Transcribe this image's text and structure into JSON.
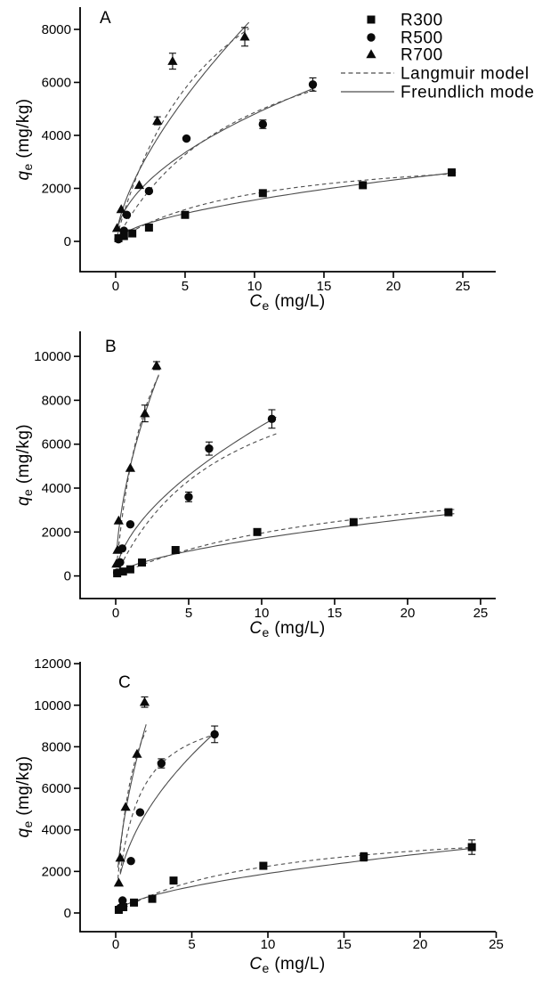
{
  "figure": {
    "background": "#ffffff",
    "axis_color": "#000000",
    "curve_color": "#4d4d4d",
    "marker_color": "#0a0a0a"
  },
  "legend": {
    "items": [
      {
        "label": "R300",
        "symbol": "square"
      },
      {
        "label": "R500",
        "symbol": "circle"
      },
      {
        "label": "R700",
        "symbol": "triangle"
      },
      {
        "label": "Langmuir model",
        "symbol": "dashed-line"
      },
      {
        "label": "Freundlich model",
        "symbol": "solid-line"
      }
    ]
  },
  "chart_data": [
    {
      "type": "scatter",
      "panel_label": "A",
      "xlabel": {
        "variable": "C",
        "subscript": "e",
        "units": " (mg/L)"
      },
      "ylabel": {
        "variable": "q",
        "subscript": "e",
        "units": " (mg/kg)"
      },
      "xlim": [
        -2.56,
        27.37
      ],
      "ylim": [
        -1143,
        8840
      ],
      "xticks": [
        0,
        5,
        10,
        15,
        20,
        25
      ],
      "yticks": [
        0,
        2000,
        4000,
        6000,
        8000
      ],
      "grid": false,
      "series": [
        {
          "name": "R300",
          "marker": "square",
          "points": [
            [
              0.2,
              120,
              0
            ],
            [
              0.6,
              200,
              0
            ],
            [
              1.2,
              300,
              0
            ],
            [
              2.4,
              520,
              0
            ],
            [
              5.0,
              1000,
              0
            ],
            [
              10.6,
              1820,
              100
            ],
            [
              17.8,
              2120,
              120
            ],
            [
              24.2,
              2600,
              130
            ]
          ],
          "langmuir": {
            "qm": 3600,
            "kl": 0.1
          },
          "freundlich": {
            "kf": 420,
            "n_inv": 0.57
          },
          "fit_range": [
            0.15,
            24.5
          ]
        },
        {
          "name": "R500",
          "marker": "circle",
          "points": [
            [
              0.2,
              80,
              0
            ],
            [
              0.6,
              400,
              0
            ],
            [
              0.8,
              1000,
              0
            ],
            [
              2.4,
              1900,
              0
            ],
            [
              5.1,
              3880,
              0
            ],
            [
              10.6,
              4420,
              160
            ],
            [
              14.2,
              5920,
              250
            ]
          ],
          "langmuir": {
            "qm": 9500,
            "kl": 0.105
          },
          "freundlich": {
            "kf": 1450,
            "n_inv": 0.52
          },
          "fit_range": [
            0.15,
            14.4
          ]
        },
        {
          "name": "R700",
          "marker": "triangle",
          "points": [
            [
              0.1,
              500,
              0
            ],
            [
              0.4,
              1210,
              0
            ],
            [
              1.7,
              2120,
              0
            ],
            [
              3.0,
              4550,
              150
            ],
            [
              4.1,
              6800,
              300
            ],
            [
              9.3,
              7720,
              350
            ]
          ],
          "langmuir": {
            "qm": 14000,
            "kl": 0.14
          },
          "freundlich": {
            "kf": 1900,
            "n_inv": 0.65
          },
          "fit_range": [
            0.1,
            9.6
          ]
        }
      ]
    },
    {
      "type": "scatter",
      "panel_label": "B",
      "xlabel": {
        "variable": "C",
        "subscript": "e",
        "units": " (mg/L)"
      },
      "ylabel": {
        "variable": "q",
        "subscript": "e",
        "units": " (mg/kg)"
      },
      "xlim": [
        -2.44,
        26.04
      ],
      "ylim": [
        -1030,
        11140
      ],
      "xticks": [
        0,
        5,
        10,
        15,
        20,
        25
      ],
      "yticks": [
        0,
        2000,
        4000,
        6000,
        8000,
        10000
      ],
      "grid": false,
      "series": [
        {
          "name": "R300",
          "marker": "square",
          "points": [
            [
              0.1,
              120,
              0
            ],
            [
              0.5,
              200,
              0
            ],
            [
              1.0,
              300,
              0
            ],
            [
              1.8,
              610,
              0
            ],
            [
              4.1,
              1180,
              0
            ],
            [
              9.7,
              2000,
              120
            ],
            [
              16.3,
              2450,
              0
            ],
            [
              22.8,
              2900,
              140
            ]
          ],
          "langmuir": {
            "qm": 5200,
            "kl": 0.06
          },
          "freundlich": {
            "kf": 430,
            "n_inv": 0.6
          },
          "fit_range": [
            0.1,
            23.2
          ]
        },
        {
          "name": "R500",
          "marker": "circle",
          "points": [
            [
              0.1,
              150,
              0
            ],
            [
              0.3,
              620,
              0
            ],
            [
              0.45,
              1250,
              0
            ],
            [
              1.0,
              2350,
              0
            ],
            [
              5.0,
              3600,
              220
            ],
            [
              6.4,
              5800,
              300
            ],
            [
              10.7,
              7150,
              420
            ]
          ],
          "langmuir": {
            "qm": 11000,
            "kl": 0.13
          },
          "freundlich": {
            "kf": 1800,
            "n_inv": 0.58
          },
          "fit_range": [
            0.1,
            11.0
          ]
        },
        {
          "name": "R700",
          "marker": "triangle",
          "points": [
            [
              0.05,
              550,
              0
            ],
            [
              0.12,
              1180,
              0
            ],
            [
              0.2,
              2520,
              0
            ],
            [
              1.0,
              4910,
              0
            ],
            [
              2.0,
              7400,
              380
            ],
            [
              2.8,
              9580,
              180
            ]
          ],
          "langmuir": {
            "qm": 16000,
            "kl": 0.45
          },
          "freundlich": {
            "kf": 5000,
            "n_inv": 0.56
          },
          "fit_range": [
            0.06,
            2.95
          ]
        }
      ]
    },
    {
      "type": "scatter",
      "panel_label": "C",
      "xlabel": {
        "variable": "C",
        "subscript": "e",
        "units": " (mg/L)"
      },
      "ylabel": {
        "variable": "q",
        "subscript": "e",
        "units": " (mg/kg)"
      },
      "xlim": [
        -2.34,
        24.97
      ],
      "ylim": [
        -900,
        12090
      ],
      "xticks": [
        0,
        5,
        10,
        15,
        20,
        25
      ],
      "yticks": [
        0,
        2000,
        4000,
        6000,
        8000,
        10000,
        12000
      ],
      "grid": false,
      "series": [
        {
          "name": "R300",
          "marker": "square",
          "points": [
            [
              0.2,
              150,
              0
            ],
            [
              0.5,
              280,
              0
            ],
            [
              1.2,
              500,
              0
            ],
            [
              2.4,
              680,
              0
            ],
            [
              3.8,
              1560,
              0
            ],
            [
              9.7,
              2270,
              140
            ],
            [
              16.3,
              2700,
              200
            ],
            [
              23.4,
              3170,
              350
            ]
          ],
          "langmuir": {
            "qm": 4500,
            "kl": 0.1
          },
          "freundlich": {
            "kf": 500,
            "n_inv": 0.58
          },
          "fit_range": [
            0.15,
            23.6
          ]
        },
        {
          "name": "R500",
          "marker": "circle",
          "points": [
            [
              0.3,
              250,
              0
            ],
            [
              0.45,
              600,
              0
            ],
            [
              1.0,
              2500,
              0
            ],
            [
              1.6,
              4840,
              0
            ],
            [
              3.0,
              7200,
              220
            ],
            [
              6.5,
              8600,
              400
            ]
          ],
          "langmuir": {
            "qm": 10300,
            "kl": 0.77
          },
          "freundlich": {
            "kf": 3400,
            "n_inv": 0.5
          },
          "fit_range": [
            0.3,
            6.6
          ]
        },
        {
          "name": "R700",
          "marker": "triangle",
          "points": [
            [
              0.2,
              1450,
              0
            ],
            [
              0.3,
              2650,
              0
            ],
            [
              0.65,
              5100,
              0
            ],
            [
              1.4,
              7650,
              0
            ],
            [
              1.9,
              10150,
              250
            ]
          ],
          "langmuir": {
            "qm": 13500,
            "kl": 0.93
          },
          "freundlich": {
            "kf": 6200,
            "n_inv": 0.55
          },
          "fit_range": [
            0.15,
            2.0
          ]
        }
      ]
    }
  ]
}
